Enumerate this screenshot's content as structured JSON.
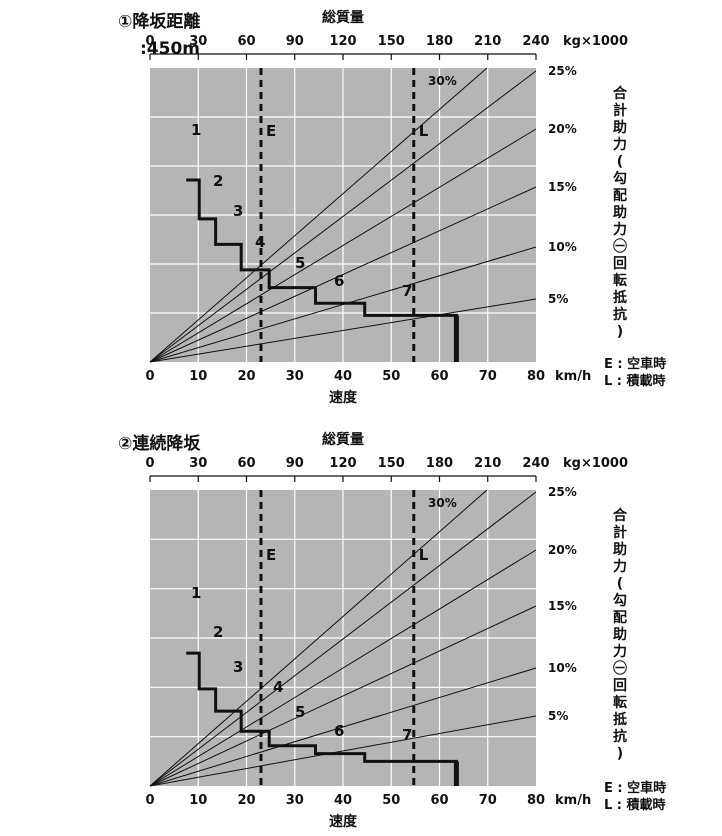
{
  "chart_data": [
    {
      "type": "line",
      "title": "①降坂距離",
      "subtitle": ":450m",
      "xlabel": "速度",
      "x_unit": "km/h",
      "xlim": [
        0,
        80
      ],
      "x_ticks": [
        "0",
        "10",
        "20",
        "30",
        "40",
        "50",
        "60",
        "70",
        "80"
      ],
      "top_axis_label": "総質量",
      "top_axis_unit": "kg×1000",
      "top_ticks": [
        "0",
        "30",
        "60",
        "90",
        "120",
        "150",
        "180",
        "210",
        "240"
      ],
      "right_axis_label": "合計助力(勾配助力㊀回転抵抗)",
      "grade_lines": [
        {
          "label": "5%",
          "grade": 5
        },
        {
          "label": "10%",
          "grade": 10
        },
        {
          "label": "15%",
          "grade": 15
        },
        {
          "label": "20%",
          "grade": 20
        },
        {
          "label": "25%",
          "grade": 25
        },
        {
          "label": "30%",
          "grade": 30
        }
      ],
      "reference_lines": [
        {
          "label": "E",
          "mass": 69,
          "meaning": "空車時"
        },
        {
          "label": "L",
          "mass": 164,
          "meaning": "積載時"
        }
      ],
      "legend": [
        "E : 空車時",
        "L : 積載時"
      ],
      "gears": [
        {
          "label": "1",
          "x_start": 7.5,
          "x_end": 10.2,
          "y": 16.4
        },
        {
          "label": "2",
          "x_start": 10.2,
          "x_end": 13.6,
          "y": 12.9
        },
        {
          "label": "3",
          "x_start": 13.6,
          "x_end": 18.9,
          "y": 10.6
        },
        {
          "label": "4",
          "x_start": 18.9,
          "x_end": 24.7,
          "y": 8.3
        },
        {
          "label": "5",
          "x_start": 24.7,
          "x_end": 34.3,
          "y": 6.7
        },
        {
          "label": "6",
          "x_start": 34.3,
          "x_end": 44.5,
          "y": 5.3
        },
        {
          "label": "7",
          "x_start": 44.5,
          "x_end": 63.5,
          "y": 4.2
        }
      ],
      "gear_end_x": 63.5
    },
    {
      "type": "line",
      "title": "②連続降坂",
      "xlabel": "速度",
      "x_unit": "km/h",
      "xlim": [
        0,
        80
      ],
      "x_ticks": [
        "0",
        "10",
        "20",
        "30",
        "40",
        "50",
        "60",
        "70",
        "80"
      ],
      "top_axis_label": "総質量",
      "top_axis_unit": "kg×1000",
      "top_ticks": [
        "0",
        "30",
        "60",
        "90",
        "120",
        "150",
        "180",
        "210",
        "240"
      ],
      "right_axis_label": "合計助力(勾配助力㊀回転抵抗)",
      "grade_lines": [
        {
          "label": "5%",
          "grade": 5
        },
        {
          "label": "10%",
          "grade": 10
        },
        {
          "label": "15%",
          "grade": 15
        },
        {
          "label": "20%",
          "grade": 20
        },
        {
          "label": "25%",
          "grade": 25
        },
        {
          "label": "30%",
          "grade": 30
        }
      ],
      "reference_lines": [
        {
          "label": "E",
          "mass": 69,
          "meaning": "空車時"
        },
        {
          "label": "L",
          "mass": 164,
          "meaning": "積載時"
        }
      ],
      "legend": [
        "E : 空車時",
        "L : 積載時"
      ],
      "gears": [
        {
          "label": "1",
          "x_start": 7.5,
          "x_end": 10.2,
          "y": 11.9
        },
        {
          "label": "2",
          "x_start": 10.2,
          "x_end": 13.6,
          "y": 8.7
        },
        {
          "label": "3",
          "x_start": 13.6,
          "x_end": 18.9,
          "y": 6.7
        },
        {
          "label": "4",
          "x_start": 18.9,
          "x_end": 24.7,
          "y": 4.9
        },
        {
          "label": "5",
          "x_start": 24.7,
          "x_end": 34.3,
          "y": 3.6
        },
        {
          "label": "6",
          "x_start": 34.3,
          "x_end": 44.5,
          "y": 2.9
        },
        {
          "label": "7",
          "x_start": 44.5,
          "x_end": 63.5,
          "y": 2.2
        }
      ],
      "gear_end_x": 63.5
    }
  ]
}
